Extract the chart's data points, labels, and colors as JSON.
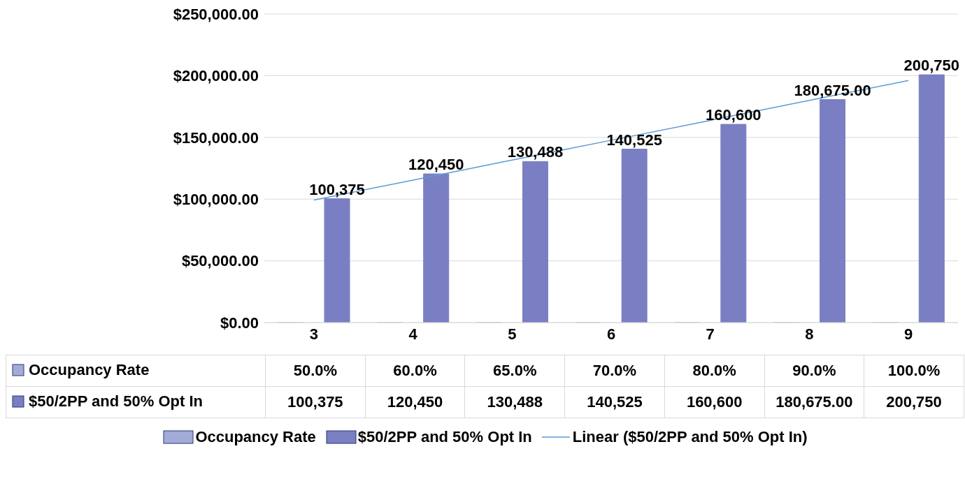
{
  "chart_data": {
    "type": "bar",
    "categories": [
      "3",
      "4",
      "5",
      "6",
      "7",
      "8",
      "9"
    ],
    "series": [
      {
        "name": "Occupancy Rate",
        "color": "#a3acd9",
        "values": [
          0.5,
          0.6,
          0.65,
          0.7,
          0.8,
          0.9,
          1.0
        ],
        "value_labels": [
          "50.0%",
          "60.0%",
          "65.0%",
          "70.0%",
          "80.0%",
          "90.0%",
          "100.0%"
        ]
      },
      {
        "name": "$50/2PP and 50% Opt In",
        "color": "#7a7fc3",
        "values": [
          100375,
          120450,
          130488,
          140525,
          160600,
          180675,
          200750
        ],
        "value_labels": [
          "100,375",
          "120,450",
          "130,488",
          "140,525",
          "160,600",
          "180,675.00",
          "200,750"
        ]
      },
      {
        "name": "Linear ($50/2PP and 50% Opt In)",
        "type": "line",
        "color": "#5b9bd5",
        "values": [
          99300,
          115400,
          131600,
          147700,
          163800,
          180000,
          196100
        ]
      }
    ],
    "annotations": [
      "100,375",
      "120,450",
      "130,488",
      "140,525",
      "160,600",
      "180,675.00",
      "200,750"
    ],
    "ylim": [
      0,
      250000
    ],
    "yticks": [
      {
        "value": 0,
        "label": "$0.00"
      },
      {
        "value": 50000,
        "label": "$50,000.00"
      },
      {
        "value": 100000,
        "label": "$100,000.00"
      },
      {
        "value": 150000,
        "label": "$150,000.00"
      },
      {
        "value": 200000,
        "label": "$200,000.00"
      },
      {
        "value": 250000,
        "label": "$250,000.00"
      }
    ],
    "grid": "y",
    "legend": "bottom"
  }
}
